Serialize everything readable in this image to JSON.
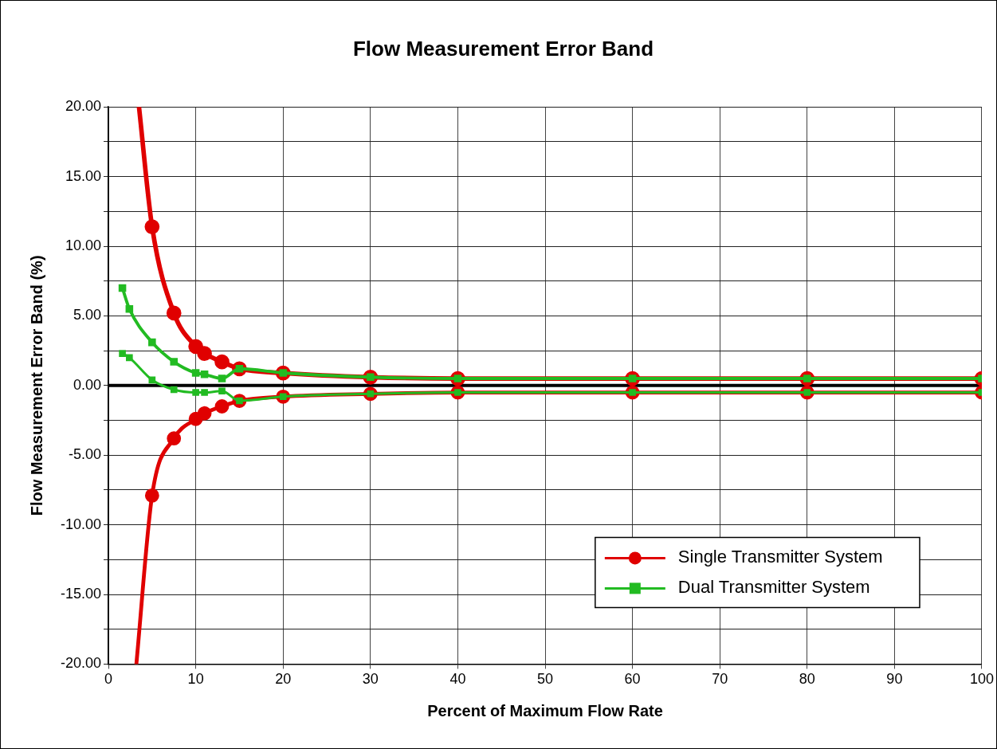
{
  "chart_data": {
    "type": "line",
    "title": "Flow Measurement Error Band",
    "xlabel": "Percent of Maximum Flow Rate",
    "ylabel": "Flow Measurement Error Band (%)",
    "xlim": [
      0,
      100
    ],
    "xticks": [
      0,
      10,
      20,
      30,
      40,
      50,
      60,
      70,
      80,
      90,
      100
    ],
    "ylim": [
      -20,
      20
    ],
    "yticks": [
      {
        "value": -20,
        "label": "-20.00"
      },
      {
        "value": -17.5,
        "label": null
      },
      {
        "value": -15,
        "label": "-15.00"
      },
      {
        "value": -12.5,
        "label": null
      },
      {
        "value": -10,
        "label": "-10.00"
      },
      {
        "value": -7.5,
        "label": null
      },
      {
        "value": -5,
        "label": "-5.00"
      },
      {
        "value": -2.5,
        "label": null
      },
      {
        "value": 0,
        "label": "0.00"
      },
      {
        "value": 2.5,
        "label": null
      },
      {
        "value": 5,
        "label": "5.00"
      },
      {
        "value": 7.5,
        "label": null
      },
      {
        "value": 10,
        "label": "10.00"
      },
      {
        "value": 12.5,
        "label": null
      },
      {
        "value": 15,
        "label": "15.00"
      },
      {
        "value": 17.5,
        "label": null
      },
      {
        "value": 20,
        "label": "20.00"
      }
    ],
    "grid": true,
    "legend": "bottom right",
    "line_style": "solid",
    "ref_lines": [
      {
        "axis": "y",
        "value": 0,
        "color": "#000000"
      }
    ],
    "series": [
      {
        "name": "Single Transmitter System",
        "color": "#e00000",
        "marker": "circle",
        "x": [
          3.5,
          5,
          7.5,
          10,
          11,
          13,
          15,
          20,
          30,
          40,
          60,
          80,
          100
        ],
        "values": [
          20,
          11.4,
          5.2,
          2.8,
          2.3,
          1.7,
          1.2,
          0.9,
          0.6,
          0.5,
          0.5,
          0.5,
          0.5
        ]
      },
      {
        "color": "#e00000",
        "marker": "circle",
        "x": [
          3.2,
          5,
          7.5,
          10,
          11,
          13,
          15,
          20,
          30,
          40,
          60,
          80,
          100
        ],
        "values": [
          -20,
          -7.9,
          -3.8,
          -2.4,
          -2.0,
          -1.5,
          -1.1,
          -0.8,
          -0.6,
          -0.5,
          -0.5,
          -0.5,
          -0.5
        ]
      },
      {
        "name": "Dual Transmitter System",
        "color": "#22bb22",
        "marker": "square",
        "x": [
          1.6,
          2.4,
          5,
          7.5,
          10,
          11,
          13,
          15,
          20,
          30,
          40,
          60,
          80,
          100
        ],
        "values": [
          7.0,
          5.5,
          3.1,
          1.7,
          0.9,
          0.8,
          0.5,
          1.2,
          0.9,
          0.6,
          0.5,
          0.5,
          0.5,
          0.5
        ]
      },
      {
        "color": "#22bb22",
        "marker": "square",
        "x": [
          1.6,
          2.4,
          5,
          7.5,
          10,
          11,
          13,
          15,
          20,
          30,
          40,
          60,
          80,
          100
        ],
        "values": [
          2.3,
          2.0,
          0.4,
          -0.3,
          -0.5,
          -0.5,
          -0.4,
          -1.1,
          -0.8,
          -0.6,
          -0.5,
          -0.5,
          -0.5,
          -0.5
        ]
      }
    ]
  }
}
